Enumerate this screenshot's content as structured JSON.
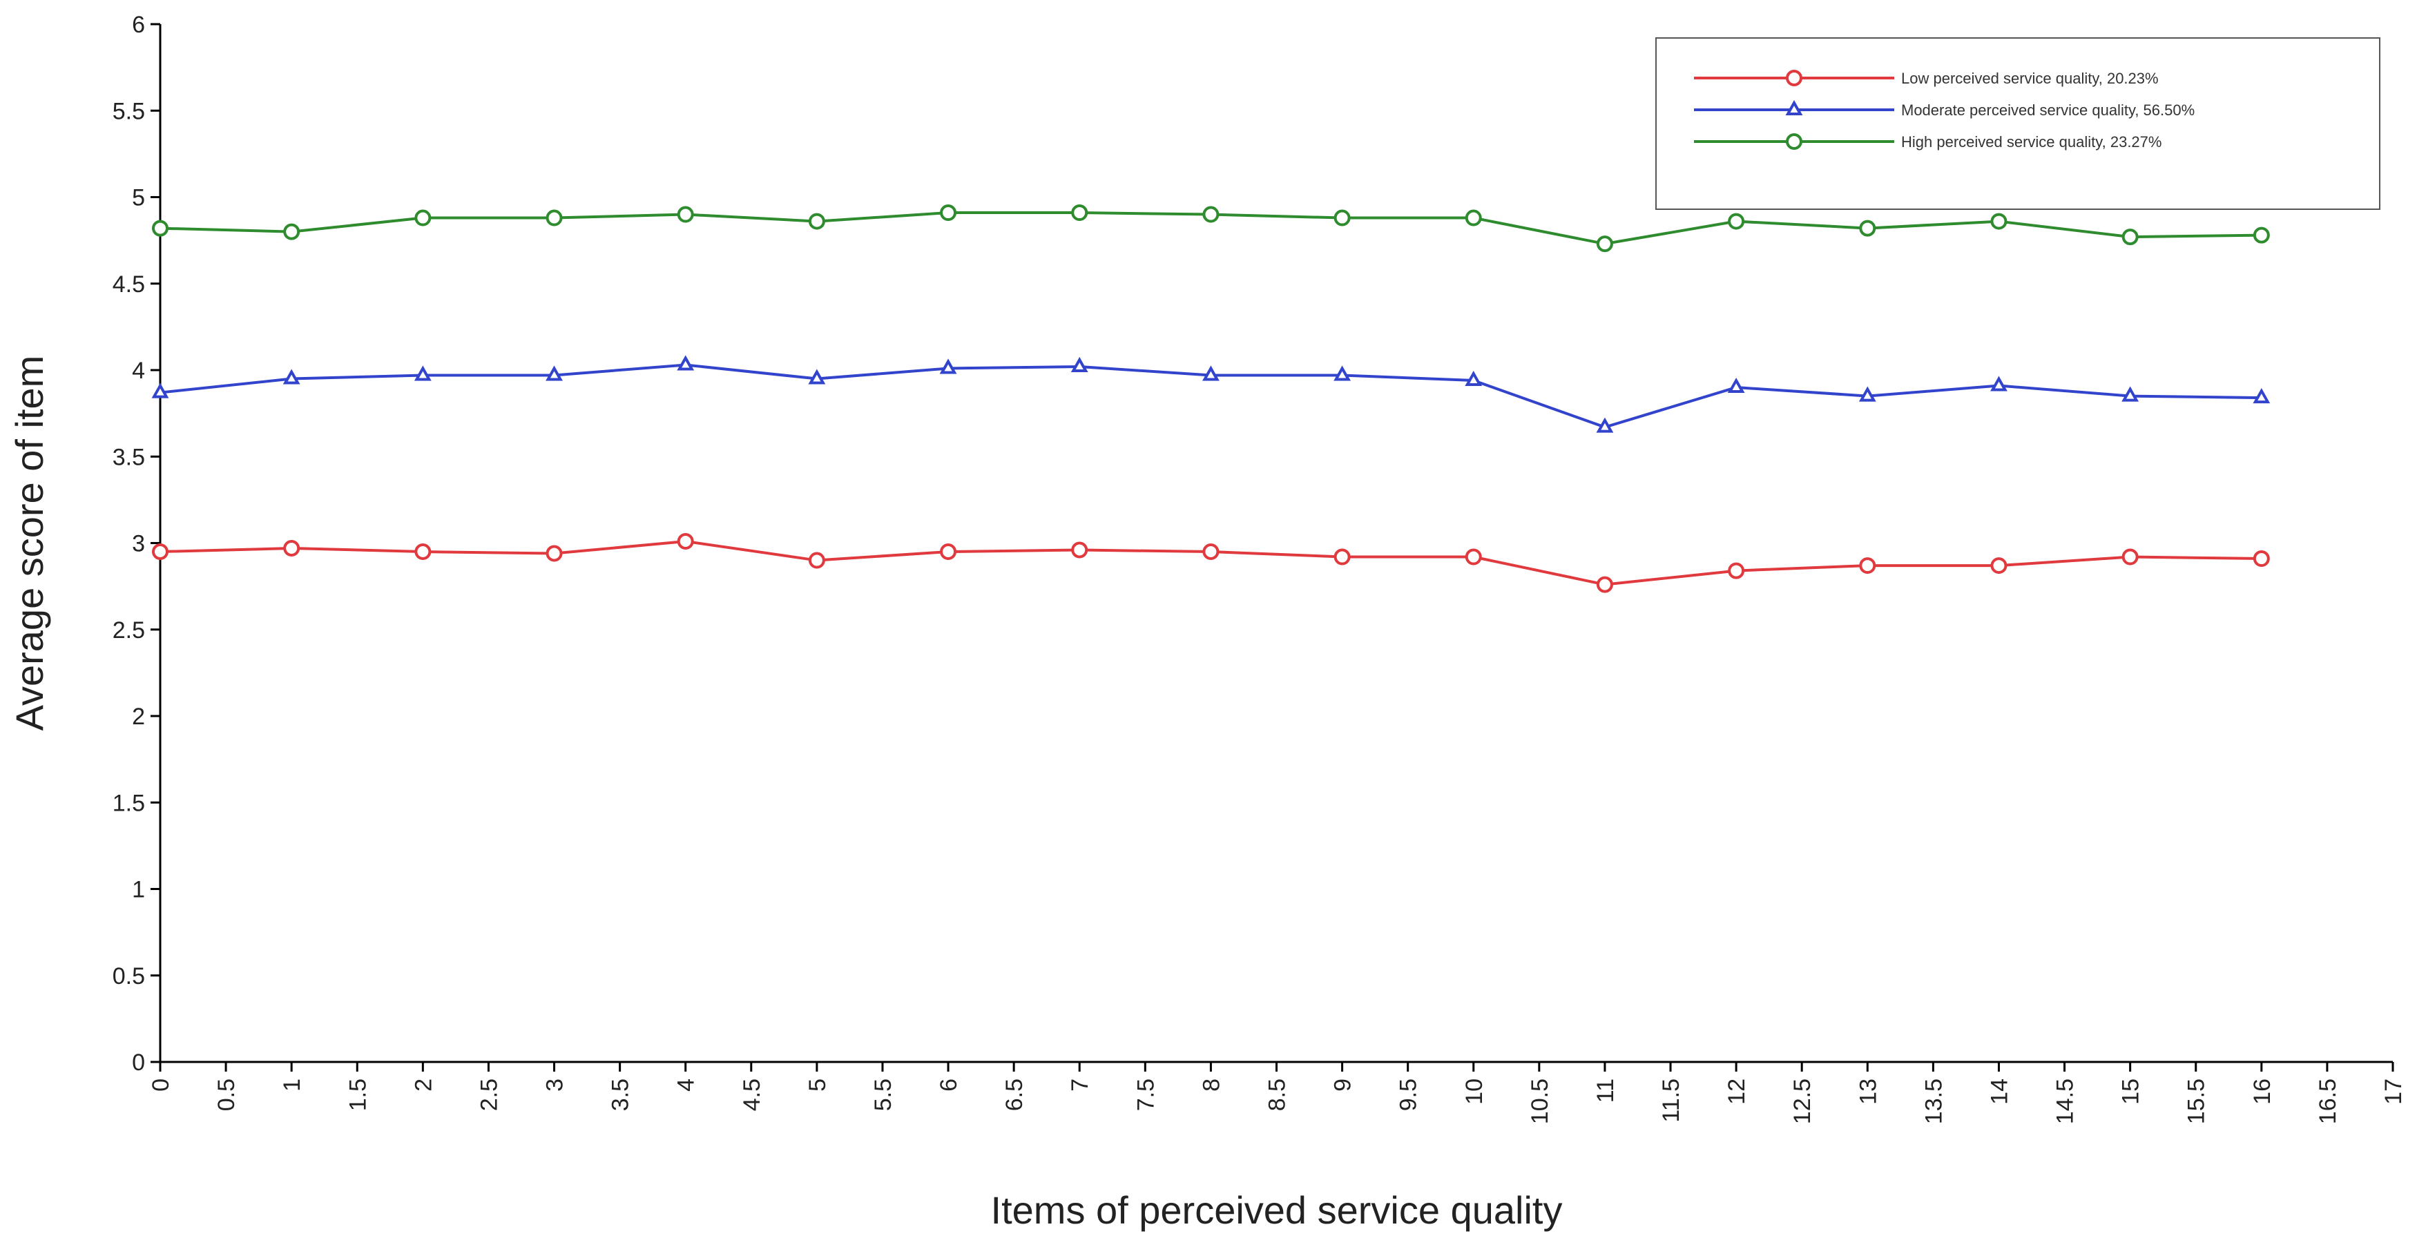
{
  "chart_data": {
    "type": "line",
    "xlabel": "Items of perceived service quality",
    "ylabel": "Average score of item",
    "xlim": [
      0,
      17
    ],
    "ylim": [
      0,
      6
    ],
    "x_ticks": [
      "0",
      "0.5",
      "1",
      "1.5",
      "2",
      "2.5",
      "3",
      "3.5",
      "4",
      "4.5",
      "5",
      "5.5",
      "6",
      "6.5",
      "7",
      "7.5",
      "8",
      "8.5",
      "9",
      "9.5",
      "10",
      "10.5",
      "11",
      "11.5",
      "12",
      "12.5",
      "13",
      "13.5",
      "14",
      "14.5",
      "15",
      "15.5",
      "16",
      "16.5",
      "17"
    ],
    "y_ticks": [
      "0",
      "0.5",
      "1",
      "1.5",
      "2",
      "2.5",
      "3",
      "3.5",
      "4",
      "4.5",
      "5",
      "5.5",
      "6"
    ],
    "grid": false,
    "legend_position": "top-right",
    "x": [
      0,
      1,
      2,
      3,
      4,
      5,
      6,
      7,
      8,
      9,
      10,
      11,
      12,
      13,
      14,
      15,
      16
    ],
    "series": [
      {
        "name": "Low perceived service quality, 20.23%",
        "color": "#e03a3e",
        "marker": "circle",
        "values": [
          2.95,
          2.97,
          2.95,
          2.94,
          3.01,
          2.9,
          2.95,
          2.96,
          2.95,
          2.92,
          2.92,
          2.76,
          2.84,
          2.87,
          2.87,
          2.92,
          2.91
        ]
      },
      {
        "name": "Moderate perceived service quality, 56.50%",
        "color": "#3344cc",
        "marker": "triangle",
        "values": [
          3.87,
          3.95,
          3.97,
          3.97,
          4.03,
          3.95,
          4.01,
          4.02,
          3.97,
          3.97,
          3.94,
          3.67,
          3.9,
          3.85,
          3.91,
          3.85,
          3.84
        ]
      },
      {
        "name": "High perceived service quality, 23.27%",
        "color": "#2e8b2e",
        "marker": "circle",
        "values": [
          4.82,
          4.8,
          4.88,
          4.88,
          4.9,
          4.86,
          4.91,
          4.91,
          4.9,
          4.88,
          4.88,
          4.73,
          4.86,
          4.82,
          4.86,
          4.77,
          4.78
        ]
      }
    ]
  }
}
